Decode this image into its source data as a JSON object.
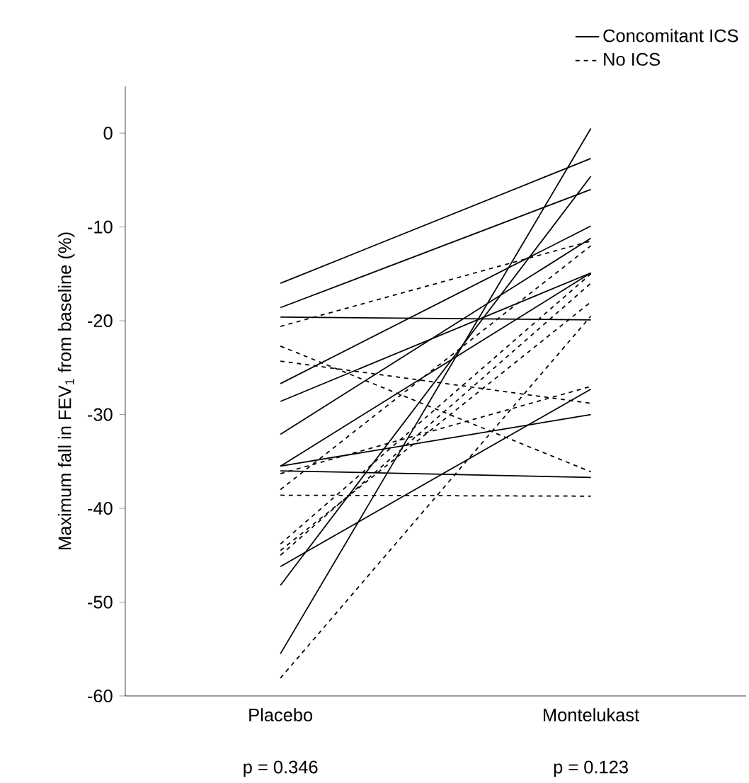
{
  "chart_data": {
    "type": "line",
    "ylabel": "Maximum fall in FEV$_{1}$ from baseline (%)",
    "categories": [
      "Placebo",
      "Montelukast"
    ],
    "annotations": [
      "p = 0.346",
      "p = 0.123"
    ],
    "ylim": [
      -60,
      5
    ],
    "yticks": [
      -60,
      -50,
      -40,
      -30,
      -20,
      -10,
      0
    ],
    "legend": "top right",
    "grid": false,
    "marker": "none",
    "series": [
      {
        "name": "Concomitant ICS",
        "color": "#000000",
        "line_style": "solid",
        "values": [
          -16,
          -2.7
        ]
      },
      {
        "color": "#000000",
        "line_style": "solid",
        "values": [
          -18.6,
          -6
        ]
      },
      {
        "color": "#000000",
        "line_style": "solid",
        "values": [
          -19.6,
          -19.9
        ]
      },
      {
        "color": "#000000",
        "line_style": "solid",
        "values": [
          -26.7,
          -9.9
        ]
      },
      {
        "color": "#000000",
        "line_style": "solid",
        "values": [
          -28.6,
          -14.9
        ]
      },
      {
        "color": "#000000",
        "line_style": "solid",
        "values": [
          -32.1,
          -11.2
        ]
      },
      {
        "color": "#000000",
        "line_style": "solid",
        "values": [
          -35.5,
          -14.9
        ]
      },
      {
        "color": "#000000",
        "line_style": "solid",
        "values": [
          -35.5,
          -30
        ]
      },
      {
        "color": "#000000",
        "line_style": "solid",
        "values": [
          -36,
          -36.7
        ]
      },
      {
        "color": "#000000",
        "line_style": "solid",
        "values": [
          -46.2,
          -27.3
        ]
      },
      {
        "color": "#000000",
        "line_style": "solid",
        "values": [
          -48.2,
          -4.6
        ]
      },
      {
        "color": "#000000",
        "line_style": "solid",
        "values": [
          -55.5,
          0.5
        ]
      },
      {
        "name": "No ICS",
        "color": "#000000",
        "line_style": "dashed",
        "values": [
          -20.6,
          -11.5
        ]
      },
      {
        "color": "#000000",
        "line_style": "dashed",
        "values": [
          -22.7,
          -36.1
        ]
      },
      {
        "color": "#000000",
        "line_style": "dashed",
        "values": [
          -24.3,
          -28.8
        ]
      },
      {
        "color": "#000000",
        "line_style": "dashed",
        "values": [
          -36.3,
          -27
        ]
      },
      {
        "color": "#000000",
        "line_style": "dashed",
        "values": [
          -38,
          -12
        ]
      },
      {
        "color": "#000000",
        "line_style": "dashed",
        "values": [
          -38.6,
          -38.7
        ]
      },
      {
        "color": "#000000",
        "line_style": "dashed",
        "values": [
          -43.8,
          -15
        ]
      },
      {
        "color": "#000000",
        "line_style": "dashed",
        "values": [
          -44.5,
          -18
        ]
      },
      {
        "color": "#000000",
        "line_style": "dashed",
        "values": [
          -45,
          -16
        ]
      },
      {
        "color": "#000000",
        "line_style": "dashed",
        "values": [
          -58.1,
          -19.5
        ]
      }
    ]
  }
}
